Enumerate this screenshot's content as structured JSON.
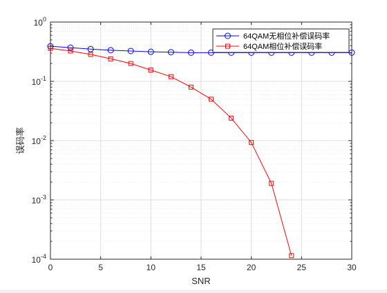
{
  "chart_data": {
    "type": "line",
    "title": "",
    "xlabel": "SNR",
    "ylabel": "误码率",
    "xlim": [
      0,
      30
    ],
    "ylim": [
      0.0001,
      1
    ],
    "yscale": "log",
    "grid": true,
    "legend_position": "top-right",
    "x_ticks": [
      "0",
      "5",
      "10",
      "15",
      "20",
      "25",
      "30"
    ],
    "y_ticks": [
      {
        "base": "10",
        "exp": "-4"
      },
      {
        "base": "10",
        "exp": "-3"
      },
      {
        "base": "10",
        "exp": "-2"
      },
      {
        "base": "10",
        "exp": "-1"
      },
      {
        "base": "10",
        "exp": "0"
      }
    ],
    "series": [
      {
        "name": "64QAM无相位补偿误码率",
        "color": "#0000ff",
        "marker": "circle",
        "x": [
          0,
          2,
          4,
          6,
          8,
          10,
          12,
          14,
          16,
          18,
          20,
          22,
          24,
          26,
          28,
          30
        ],
        "y": [
          0.39,
          0.37,
          0.35,
          0.335,
          0.325,
          0.315,
          0.31,
          0.305,
          0.305,
          0.305,
          0.305,
          0.305,
          0.305,
          0.305,
          0.305,
          0.305
        ]
      },
      {
        "name": "64QAM相位补偿误码率",
        "color": "#ff0000",
        "marker": "square",
        "x": [
          0,
          2,
          4,
          6,
          8,
          10,
          12,
          14,
          16,
          18,
          20,
          22,
          24
        ],
        "y": [
          0.36,
          0.325,
          0.285,
          0.24,
          0.2,
          0.155,
          0.12,
          0.08,
          0.05,
          0.024,
          0.0093,
          0.0019,
          0.000115
        ]
      }
    ]
  }
}
